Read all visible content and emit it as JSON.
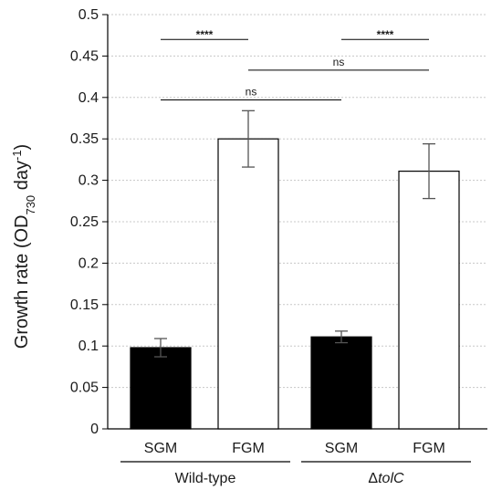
{
  "chart_data": {
    "type": "bar",
    "ylabel_main": "Growth rate (OD",
    "ylabel_sub": "730",
    "ylabel_mid": " day",
    "ylabel_sup": "-1",
    "ylabel_end": ")",
    "ylim": [
      0,
      0.5
    ],
    "yticks": [
      "0",
      "0.05",
      "0.1",
      "0.15",
      "0.2",
      "0.25",
      "0.3",
      "0.35",
      "0.4",
      "0.45",
      "0.5"
    ],
    "grid": true,
    "categories": [
      "SGM",
      "FGM",
      "SGM",
      "FGM"
    ],
    "groups": [
      {
        "label": "Wild-type",
        "italic_part": ""
      },
      {
        "label": "Δ",
        "italic_part": "tolC"
      }
    ],
    "values": [
      0.098,
      0.35,
      0.111,
      0.311
    ],
    "errors": [
      0.011,
      0.034,
      0.007,
      0.033
    ],
    "bar_fills": [
      "#000000",
      "#ffffff",
      "#000000",
      "#ffffff"
    ],
    "significance": [
      {
        "from": 0,
        "to": 1,
        "y": 0.47,
        "label": "****"
      },
      {
        "from": 2,
        "to": 3,
        "y": 0.47,
        "label": "****"
      },
      {
        "from": 1,
        "to": 3,
        "y": 0.433,
        "label": "ns"
      },
      {
        "from": 0,
        "to": 2,
        "y": 0.397,
        "label": "ns"
      }
    ]
  }
}
